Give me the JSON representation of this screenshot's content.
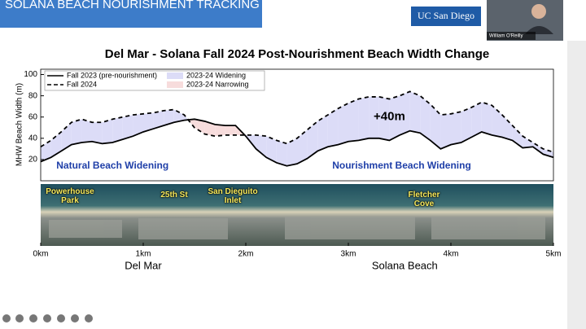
{
  "header": {
    "title": "SOLANA BEACH NOURISHMENT TRACKING",
    "logo": "UC San Diego"
  },
  "video": {
    "name": "William O'Reilly"
  },
  "chart_data": {
    "type": "line",
    "title": "Del Mar - Solana Fall 2024 Post-Nourishment Beach Width Change",
    "ylabel": "MHW Beach Width (m)",
    "x": [
      0,
      0.1,
      0.2,
      0.3,
      0.4,
      0.5,
      0.6,
      0.7,
      0.8,
      0.9,
      1.0,
      1.1,
      1.2,
      1.3,
      1.4,
      1.5,
      1.6,
      1.7,
      1.8,
      1.9,
      2.0,
      2.1,
      2.2,
      2.3,
      2.4,
      2.5,
      2.6,
      2.7,
      2.8,
      2.9,
      3.0,
      3.1,
      3.2,
      3.3,
      3.4,
      3.5,
      3.6,
      3.7,
      3.8,
      3.9,
      4.0,
      4.1,
      4.2,
      4.3,
      4.4,
      4.5,
      4.6,
      4.7,
      4.8,
      4.9,
      5.0
    ],
    "series": [
      {
        "name": "Fall 2023 (pre-nourishment)",
        "color": "#000000",
        "line_style": "solid",
        "values": [
          18,
          22,
          28,
          34,
          36,
          37,
          35,
          36,
          39,
          42,
          46,
          49,
          52,
          55,
          57,
          58,
          56,
          53,
          52,
          52,
          42,
          30,
          22,
          17,
          14,
          16,
          21,
          28,
          32,
          34,
          37,
          38,
          40,
          40,
          38,
          43,
          47,
          45,
          38,
          30,
          34,
          36,
          41,
          46,
          43,
          41,
          38,
          31,
          32,
          25,
          22
        ]
      },
      {
        "name": "Fall 2024",
        "color": "#000000",
        "line_style": "dashed",
        "values": [
          32,
          38,
          46,
          55,
          58,
          55,
          55,
          58,
          60,
          62,
          63,
          64,
          66,
          67,
          62,
          50,
          44,
          42,
          43,
          43,
          43,
          43,
          42,
          38,
          35,
          40,
          48,
          56,
          62,
          68,
          73,
          77,
          79,
          79,
          77,
          80,
          84,
          80,
          72,
          62,
          63,
          65,
          69,
          74,
          71,
          62,
          52,
          42,
          36,
          30,
          27
        ]
      }
    ],
    "fills": [
      {
        "name": "2023-24 Widening",
        "color": "#dcdcf7"
      },
      {
        "name": "2023-24 Narrowing",
        "color": "#f7dcdc"
      }
    ],
    "xlim": [
      0,
      5
    ],
    "xticks": [
      {
        "value": 0,
        "label": "0km"
      },
      {
        "value": 1,
        "label": "1km"
      },
      {
        "value": 2,
        "label": "2km"
      },
      {
        "value": 3,
        "label": "3km"
      },
      {
        "value": 4,
        "label": "4km"
      },
      {
        "value": 5,
        "label": "5km"
      }
    ],
    "ylim": [
      0,
      105
    ],
    "yticks": [
      20,
      40,
      60,
      80,
      100
    ],
    "legend": "upper left",
    "annotations": [
      "+40m",
      "Natural Beach Widening",
      "Nourishment Beach Widening"
    ],
    "photo_labels": [
      "Powerhouse Park",
      "25th St",
      "San Dieguito Inlet",
      "Fletcher Cove"
    ],
    "region_labels": [
      "Del Mar",
      "Solana Beach"
    ]
  }
}
